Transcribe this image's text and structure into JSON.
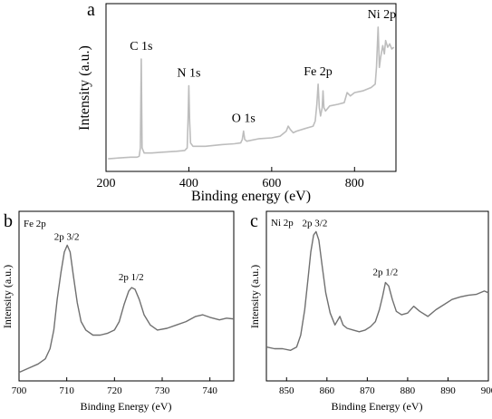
{
  "figure": {
    "colors": {
      "survey_line": "#bdbdbd",
      "detail_line": "#707070",
      "axis": "#000000"
    }
  },
  "chart_data": [
    {
      "panel": "a",
      "type": "line",
      "title": "",
      "xlabel": "Binding energy (eV)",
      "ylabel": "Intensity (a.u.)",
      "xlim": [
        200,
        900
      ],
      "ylim": [
        0,
        100
      ],
      "xticks": [
        200,
        400,
        600,
        800
      ],
      "yticks_shown": false,
      "grid": false,
      "annotations": [
        {
          "text": "C 1s",
          "x": 285
        },
        {
          "text": "N 1s",
          "x": 400
        },
        {
          "text": "O 1s",
          "x": 532
        },
        {
          "text": "Fe 2p",
          "x": 712
        },
        {
          "text": "Ni 2p",
          "x": 857
        }
      ],
      "series": [
        {
          "x": [
            205,
            230,
            260,
            275,
            280,
            283,
            285,
            287,
            292,
            310,
            340,
            370,
            390,
            396,
            398,
            400,
            402,
            404,
            410,
            440,
            480,
            510,
            525,
            529,
            532,
            535,
            540,
            570,
            600,
            620,
            635,
            640,
            645,
            652,
            660,
            680,
            700,
            705,
            709,
            712,
            715,
            718,
            722,
            724,
            726,
            730,
            740,
            760,
            775,
            782,
            790,
            800,
            820,
            840,
            850,
            853,
            857,
            860,
            863,
            868,
            872,
            875,
            880,
            885,
            890,
            895
          ],
          "y": [
            7.5,
            8,
            8.5,
            8.5,
            9,
            14,
            67,
            14,
            11,
            11,
            11.5,
            12,
            12.5,
            14,
            30,
            51,
            30,
            17,
            15,
            15,
            16,
            16.5,
            17,
            19,
            24,
            19,
            18,
            19.5,
            20,
            21,
            24,
            27,
            25,
            23,
            24,
            25.5,
            27,
            30,
            40,
            52,
            38,
            33,
            38,
            48,
            38,
            36,
            39,
            40,
            41,
            47,
            45,
            47,
            48,
            50,
            52,
            62,
            86,
            62,
            68,
            75,
            70,
            78,
            74,
            76,
            73,
            74
          ]
        }
      ]
    },
    {
      "panel": "b",
      "type": "line",
      "title": "",
      "inset_label": "Fe 2p",
      "xlabel": "Binding Energy (eV)",
      "ylabel": "Intensity (a.u.)",
      "xlim": [
        700,
        745
      ],
      "ylim": [
        0,
        100
      ],
      "xticks": [
        700,
        710,
        720,
        730,
        740
      ],
      "yticks_shown": false,
      "grid": false,
      "annotations": [
        {
          "text": "2p 3/2",
          "x": 710
        },
        {
          "text": "2p 1/2",
          "x": 723.5
        }
      ],
      "series": [
        {
          "x": [
            700,
            702,
            704,
            705.5,
            706.5,
            707.3,
            708,
            708.8,
            709.5,
            710.1,
            710.7,
            711.4,
            712.2,
            713,
            714,
            715.5,
            717,
            718.5,
            720,
            721,
            722,
            723,
            723.6,
            724.3,
            725.2,
            726.2,
            727.5,
            729,
            731,
            733,
            735,
            737,
            738.5,
            740,
            742,
            743.5,
            745
          ],
          "y": [
            5,
            7.5,
            10,
            13,
            19,
            30,
            48,
            64,
            76,
            80,
            76,
            62,
            46,
            35,
            30,
            27,
            27,
            28,
            30,
            35,
            45,
            53,
            55,
            54,
            48,
            39,
            33,
            30,
            31,
            33,
            35,
            38,
            39,
            37.5,
            36,
            37,
            36.5
          ]
        }
      ]
    },
    {
      "panel": "c",
      "type": "line",
      "title": "",
      "inset_label": "Ni 2p",
      "xlabel": "Binding Energy (eV)",
      "ylabel": "Intensity (a.u.)",
      "xlim": [
        845,
        900
      ],
      "ylim": [
        0,
        100
      ],
      "xticks": [
        850,
        860,
        870,
        880,
        890,
        900
      ],
      "yticks_shown": false,
      "grid": false,
      "annotations": [
        {
          "text": "2p 3/2",
          "x": 857
        },
        {
          "text": "2p 1/2",
          "x": 874.5
        }
      ],
      "series": [
        {
          "x": [
            845,
            847,
            849,
            851,
            852.5,
            853.5,
            854.5,
            855.3,
            856,
            856.7,
            857.3,
            858,
            858.8,
            859.7,
            860.8,
            862,
            863.2,
            864,
            865,
            866.5,
            868,
            869.5,
            870.8,
            872,
            873,
            873.8,
            874.5,
            875.3,
            876.2,
            877.2,
            878.5,
            880,
            881.5,
            883,
            885,
            887,
            889,
            891,
            893,
            895,
            897,
            899,
            900
          ],
          "y": [
            20,
            19,
            19,
            18,
            20,
            27,
            42,
            60,
            76,
            86,
            88,
            83,
            68,
            52,
            40,
            33,
            38,
            33,
            31,
            30,
            29,
            30,
            32,
            35,
            42,
            50,
            58,
            56,
            48,
            41,
            39,
            40,
            44,
            41,
            38,
            42,
            45,
            48,
            49.5,
            50.5,
            51,
            53,
            52
          ]
        }
      ]
    }
  ]
}
